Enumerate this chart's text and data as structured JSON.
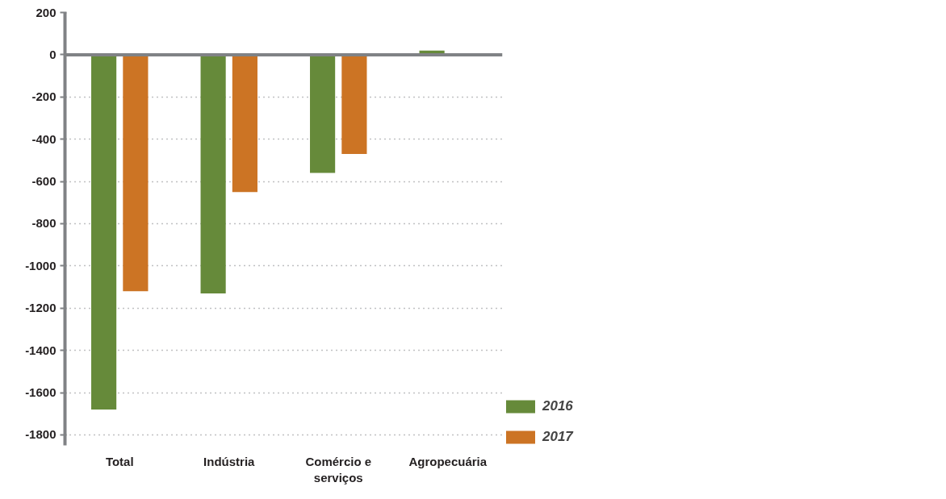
{
  "chart_data": {
    "type": "bar",
    "categories": [
      "Total",
      "Indústria",
      "Comércio e serviços",
      "Agropecuária"
    ],
    "series": [
      {
        "name": "2016",
        "color": "#668a3a",
        "values": [
          -1680,
          -1130,
          -560,
          20
        ]
      },
      {
        "name": "2017",
        "color": "#cc7424",
        "values": [
          -1120,
          -650,
          -470,
          null
        ]
      }
    ],
    "ylim": [
      -1850,
      200
    ],
    "yticks": [
      200,
      0,
      -200,
      -400,
      -600,
      -800,
      -1000,
      -1200,
      -1400,
      -1600,
      -1800
    ],
    "grid": "y",
    "legend": "right"
  }
}
